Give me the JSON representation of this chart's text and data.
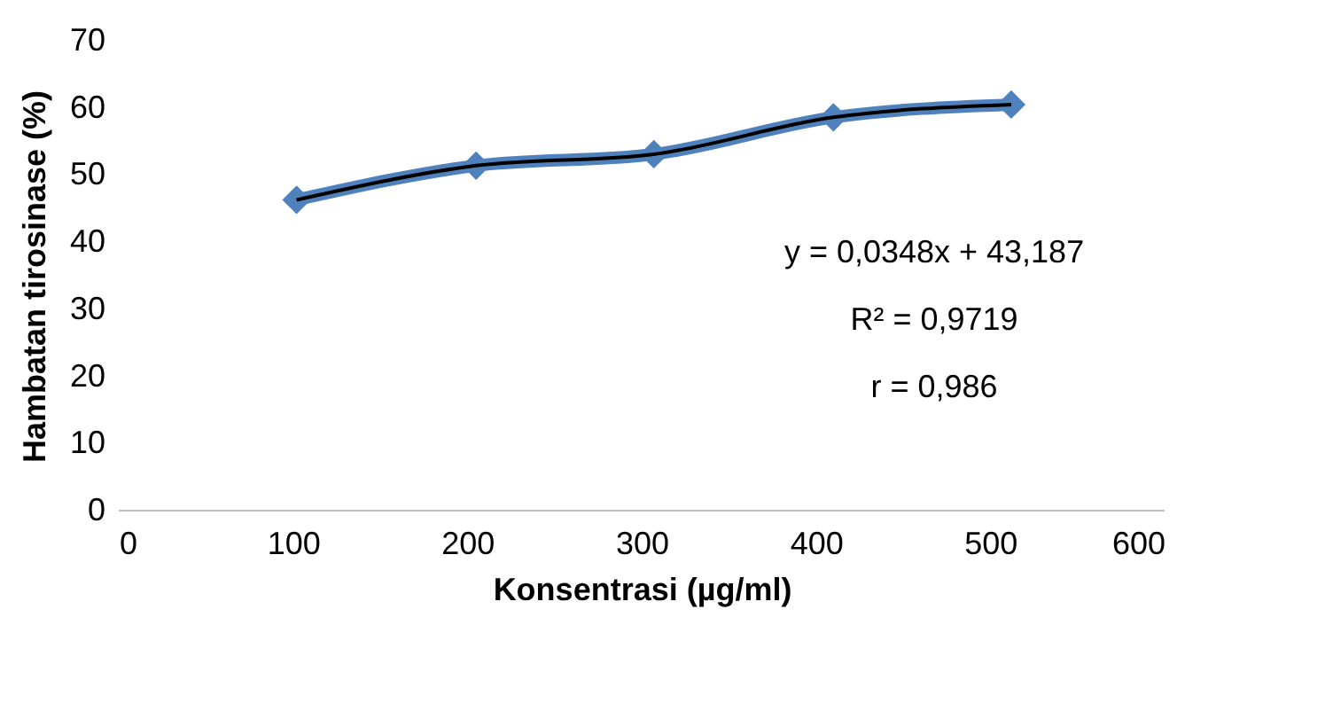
{
  "chart_data": {
    "type": "line",
    "xlabel": "Konsentrasi (µg/ml)",
    "ylabel": "Hambatan tirosinase (%)",
    "x": [
      102,
      205,
      307,
      410,
      512
    ],
    "series": [
      {
        "color": "#4f81bd",
        "marker": "diamond",
        "values": [
          46.3,
          51.4,
          53.1,
          58.6,
          60.5
        ]
      },
      {
        "color": "#000000",
        "marker": "none",
        "values": [
          46.3,
          51.4,
          53.1,
          58.6,
          60.5
        ]
      }
    ],
    "xlim": [
      0,
      600
    ],
    "xticks": [
      0,
      100,
      200,
      300,
      400,
      500,
      600
    ],
    "ylim": [
      0,
      70
    ],
    "yticks": [
      0,
      10,
      20,
      30,
      40,
      50,
      60,
      70
    ],
    "grid": false,
    "annotations": [
      "y = 0,0348x + 43,187",
      "R² = 0,9719",
      "r = 0,986"
    ]
  }
}
